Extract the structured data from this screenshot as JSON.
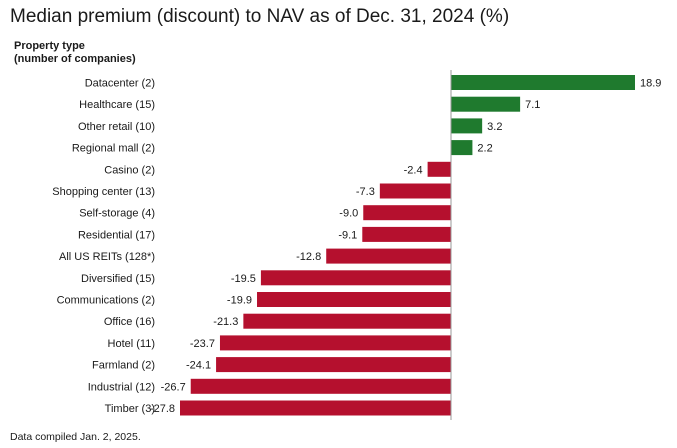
{
  "title": "Median premium (discount) to NAV as of Dec. 31, 2024 (%)",
  "column_header": [
    "Property type",
    "(number of companies)"
  ],
  "footnote": "Data compiled Jan. 2, 2025.",
  "colors": {
    "positive": "#1f7a2e",
    "negative": "#b5102e",
    "axis": "#9a9a9a"
  },
  "chart_data": {
    "type": "bar",
    "orientation": "horizontal",
    "title": "Median premium (discount) to NAV as of Dec. 31, 2024 (%)",
    "categories": [
      "Datacenter (2)",
      "Healthcare (15)",
      "Other retail (10)",
      "Regional mall (2)",
      "Casino (2)",
      "Shopping center (13)",
      "Self-storage (4)",
      "Residential (17)",
      "All US REITs (128*)",
      "Diversified (15)",
      "Communications (2)",
      "Office (16)",
      "Hotel (11)",
      "Farmland (2)",
      "Industrial (12)",
      "Timber (3)"
    ],
    "values": [
      18.9,
      7.1,
      3.2,
      2.2,
      -2.4,
      -7.3,
      -9.0,
      -9.1,
      -12.8,
      -19.5,
      -19.9,
      -21.3,
      -23.7,
      -24.1,
      -26.7,
      -27.8
    ],
    "value_labels": [
      "18.9",
      "7.1",
      "3.2",
      "2.2",
      "-2.4",
      "-7.3",
      "-9.0",
      "-9.1",
      "-12.8",
      "-19.5",
      "-19.9",
      "-21.3",
      "-23.7",
      "-24.1",
      "-26.7",
      "-27.8"
    ],
    "xlim": [
      -27.8,
      18.9
    ],
    "grid": false,
    "legend": "none"
  }
}
